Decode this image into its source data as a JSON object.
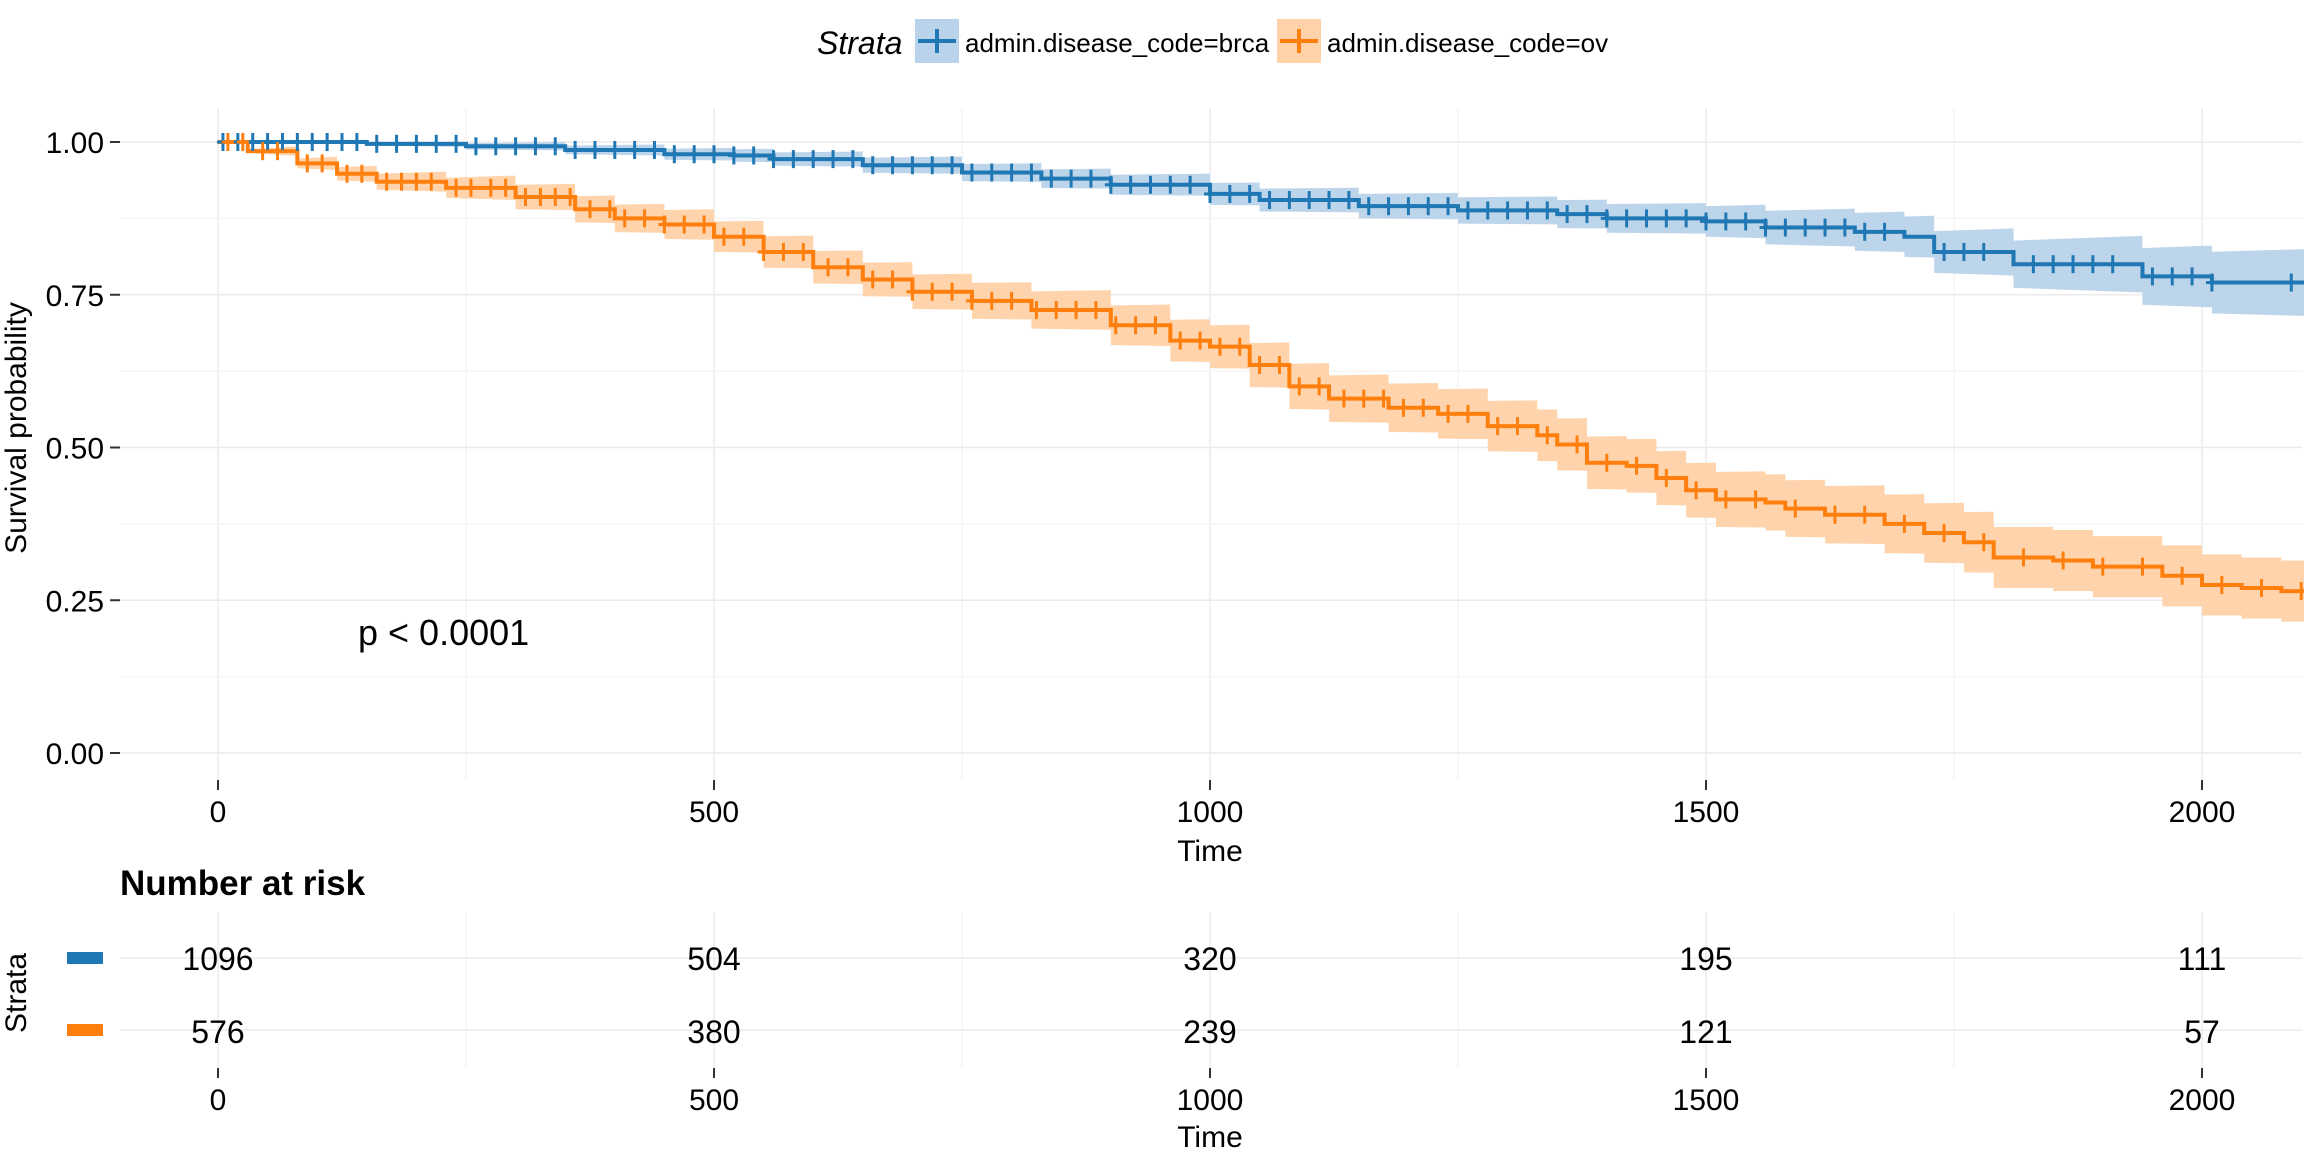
{
  "chart_data": {
    "type": "line",
    "subtype": "kaplan-meier survival curve with confidence bands and risk table",
    "title": "",
    "xlabel": "Time",
    "ylabel": "Survival probability",
    "xlim": [
      -100,
      2110
    ],
    "ylim": [
      0,
      1.05
    ],
    "xticks": [
      0,
      500,
      1000,
      1500,
      2000
    ],
    "yticks": [
      0.0,
      0.25,
      0.5,
      0.75,
      1.0
    ],
    "ytick_labels": [
      "0.00",
      "0.25",
      "0.50",
      "0.75",
      "1.00"
    ],
    "grid": true,
    "legend": {
      "title": "Strata",
      "position": "top"
    },
    "annotation": "p < 0.0001",
    "series": [
      {
        "name": "admin.disease_code=brca",
        "color": "#1f77b4",
        "band_color": "#b9d3ea",
        "points": [
          [
            0,
            1.0
          ],
          [
            150,
            0.997
          ],
          [
            250,
            0.993
          ],
          [
            350,
            0.987
          ],
          [
            450,
            0.98
          ],
          [
            520,
            0.978
          ],
          [
            560,
            0.972
          ],
          [
            650,
            0.962
          ],
          [
            750,
            0.95
          ],
          [
            830,
            0.94
          ],
          [
            900,
            0.93
          ],
          [
            1000,
            0.915
          ],
          [
            1050,
            0.905
          ],
          [
            1150,
            0.895
          ],
          [
            1250,
            0.888
          ],
          [
            1350,
            0.882
          ],
          [
            1400,
            0.875
          ],
          [
            1500,
            0.87
          ],
          [
            1560,
            0.86
          ],
          [
            1650,
            0.853
          ],
          [
            1700,
            0.845
          ],
          [
            1730,
            0.82
          ],
          [
            1790,
            0.82
          ],
          [
            1810,
            0.8
          ],
          [
            1930,
            0.8
          ],
          [
            1940,
            0.78
          ],
          [
            2000,
            0.78
          ],
          [
            2010,
            0.77
          ],
          [
            2110,
            0.77
          ]
        ],
        "ci_width": [
          [
            0,
            0.0
          ],
          [
            500,
            0.01
          ],
          [
            1000,
            0.018
          ],
          [
            1500,
            0.025
          ],
          [
            1750,
            0.035
          ],
          [
            2000,
            0.05
          ],
          [
            2110,
            0.055
          ]
        ],
        "censor_marks": [
          5,
          20,
          35,
          50,
          65,
          80,
          95,
          110,
          125,
          140,
          160,
          180,
          200,
          220,
          240,
          260,
          280,
          300,
          320,
          340,
          360,
          380,
          400,
          420,
          440,
          460,
          480,
          500,
          520,
          540,
          560,
          580,
          600,
          620,
          640,
          660,
          680,
          700,
          720,
          740,
          760,
          780,
          800,
          820,
          840,
          860,
          880,
          900,
          920,
          940,
          960,
          980,
          1000,
          1020,
          1040,
          1060,
          1080,
          1100,
          1120,
          1140,
          1160,
          1180,
          1200,
          1220,
          1240,
          1260,
          1280,
          1300,
          1320,
          1340,
          1360,
          1380,
          1400,
          1420,
          1440,
          1460,
          1480,
          1500,
          1520,
          1540,
          1560,
          1580,
          1600,
          1620,
          1640,
          1660,
          1680,
          1740,
          1760,
          1780,
          1830,
          1850,
          1870,
          1890,
          1910,
          1950,
          1970,
          1990,
          2010,
          2090
        ]
      },
      {
        "name": "admin.disease_code=ov",
        "color": "#ff7f0e",
        "band_color": "#ffd2a9",
        "points": [
          [
            0,
            1.0
          ],
          [
            30,
            0.985
          ],
          [
            80,
            0.965
          ],
          [
            120,
            0.948
          ],
          [
            160,
            0.935
          ],
          [
            230,
            0.925
          ],
          [
            300,
            0.91
          ],
          [
            360,
            0.89
          ],
          [
            400,
            0.875
          ],
          [
            450,
            0.865
          ],
          [
            500,
            0.845
          ],
          [
            550,
            0.82
          ],
          [
            600,
            0.795
          ],
          [
            650,
            0.775
          ],
          [
            700,
            0.755
          ],
          [
            760,
            0.74
          ],
          [
            820,
            0.725
          ],
          [
            900,
            0.7
          ],
          [
            960,
            0.675
          ],
          [
            1000,
            0.665
          ],
          [
            1040,
            0.635
          ],
          [
            1080,
            0.6
          ],
          [
            1120,
            0.58
          ],
          [
            1180,
            0.565
          ],
          [
            1230,
            0.555
          ],
          [
            1280,
            0.535
          ],
          [
            1330,
            0.52
          ],
          [
            1350,
            0.505
          ],
          [
            1380,
            0.475
          ],
          [
            1420,
            0.47
          ],
          [
            1450,
            0.45
          ],
          [
            1480,
            0.43
          ],
          [
            1510,
            0.415
          ],
          [
            1560,
            0.41
          ],
          [
            1580,
            0.4
          ],
          [
            1620,
            0.39
          ],
          [
            1680,
            0.375
          ],
          [
            1720,
            0.36
          ],
          [
            1760,
            0.345
          ],
          [
            1790,
            0.32
          ],
          [
            1850,
            0.315
          ],
          [
            1890,
            0.305
          ],
          [
            1960,
            0.29
          ],
          [
            2000,
            0.275
          ],
          [
            2040,
            0.27
          ],
          [
            2080,
            0.265
          ],
          [
            2110,
            0.255
          ]
        ],
        "ci_width": [
          [
            0,
            0.0
          ],
          [
            100,
            0.01
          ],
          [
            300,
            0.02
          ],
          [
            500,
            0.025
          ],
          [
            800,
            0.03
          ],
          [
            1000,
            0.035
          ],
          [
            1200,
            0.04
          ],
          [
            1500,
            0.045
          ],
          [
            1800,
            0.05
          ],
          [
            2000,
            0.05
          ],
          [
            2110,
            0.05
          ]
        ],
        "censor_marks": [
          10,
          25,
          45,
          60,
          90,
          105,
          130,
          145,
          170,
          185,
          200,
          215,
          240,
          255,
          275,
          290,
          310,
          325,
          340,
          355,
          375,
          395,
          410,
          430,
          450,
          470,
          490,
          510,
          530,
          550,
          570,
          590,
          615,
          635,
          660,
          680,
          700,
          720,
          740,
          760,
          780,
          800,
          825,
          845,
          865,
          885,
          905,
          925,
          945,
          970,
          990,
          1010,
          1030,
          1050,
          1070,
          1090,
          1110,
          1135,
          1155,
          1175,
          1195,
          1215,
          1240,
          1260,
          1290,
          1310,
          1340,
          1370,
          1400,
          1430,
          1460,
          1490,
          1520,
          1550,
          1590,
          1630,
          1660,
          1700,
          1740,
          1780,
          1820,
          1860,
          1900,
          1940,
          1980,
          2020,
          2060,
          2100
        ]
      }
    ],
    "risk_table": {
      "title": "Number at risk",
      "ylabel": "Strata",
      "xlabel": "Time",
      "times": [
        0,
        500,
        1000,
        1500,
        2000
      ],
      "rows": [
        {
          "name": "admin.disease_code=brca",
          "color": "#1f77b4",
          "values": [
            "1096",
            "504",
            "320",
            "195",
            "111"
          ]
        },
        {
          "name": "admin.disease_code=ov",
          "color": "#ff7f0e",
          "values": [
            "576",
            "380",
            "239",
            "121",
            "57"
          ]
        }
      ]
    }
  }
}
